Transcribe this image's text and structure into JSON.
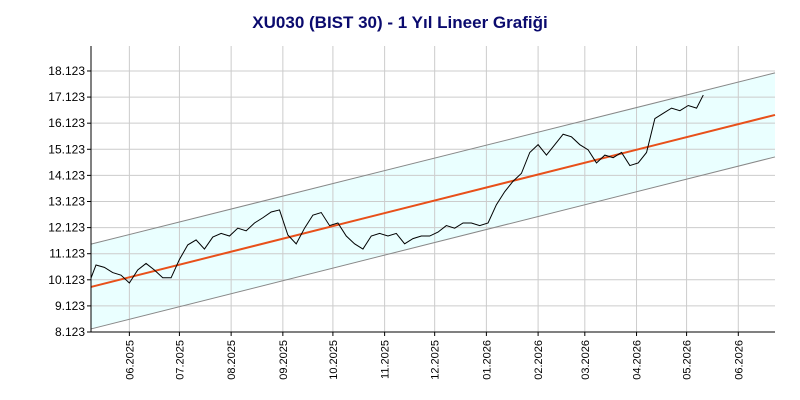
{
  "chart_data": {
    "type": "line",
    "title": "XU030 (BIST 30) - 1 Yıl Lineer Grafiği",
    "xlim": [
      0,
      410
    ],
    "xticks": [
      {
        "value": 23,
        "label": "06.2025"
      },
      {
        "value": 53,
        "label": "07.2025"
      },
      {
        "value": 84,
        "label": "08.2025"
      },
      {
        "value": 115,
        "label": "09.2025"
      },
      {
        "value": 145,
        "label": "10.2025"
      },
      {
        "value": 176,
        "label": "11.2025"
      },
      {
        "value": 206,
        "label": "12.2025"
      },
      {
        "value": 237,
        "label": "01.2026"
      },
      {
        "value": 268,
        "label": "02.2026"
      },
      {
        "value": 296,
        "label": "03.2026"
      },
      {
        "value": 327,
        "label": "04.2026"
      },
      {
        "value": 357,
        "label": "05.2026"
      },
      {
        "value": 388,
        "label": "06.2026"
      }
    ],
    "ylim": [
      8.123,
      19.08
    ],
    "yticks": [
      8.123,
      9.123,
      10.123,
      11.123,
      12.123,
      13.123,
      14.123,
      15.123,
      16.123,
      17.123,
      18.123
    ],
    "grid": true,
    "channel_fill": "#eaffff",
    "series": [
      {
        "color": "#888888",
        "x": [
          0,
          410
        ],
        "values": [
          11.49,
          18.05
        ]
      },
      {
        "color": "#888888",
        "x": [
          0,
          410
        ],
        "values": [
          8.24,
          14.83
        ]
      },
      {
        "color": "#e8501a",
        "x": [
          0,
          410
        ],
        "values": [
          9.85,
          16.44
        ]
      },
      {
        "color": "#000000",
        "x": [
          0,
          3,
          8,
          13,
          18,
          23,
          28,
          33,
          38,
          43,
          48,
          53,
          58,
          63,
          68,
          73,
          78,
          83,
          88,
          93,
          98,
          103,
          108,
          113,
          118,
          123,
          128,
          133,
          138,
          143,
          148,
          153,
          158,
          163,
          168,
          173,
          178,
          183,
          188,
          193,
          198,
          203,
          208,
          213,
          218,
          223,
          228,
          233,
          238,
          243,
          248,
          253,
          258,
          263,
          268,
          273,
          278,
          283,
          288,
          293,
          298,
          303,
          308,
          313,
          318,
          323,
          328,
          333,
          338,
          343,
          348,
          353,
          358,
          363,
          367
        ],
        "values": [
          10.19,
          10.69,
          10.6,
          10.4,
          10.3,
          10.0,
          10.5,
          10.75,
          10.5,
          10.2,
          10.2,
          10.9,
          11.46,
          11.65,
          11.3,
          11.76,
          11.9,
          11.8,
          12.1,
          12.0,
          12.3,
          12.5,
          12.72,
          12.8,
          11.84,
          11.5,
          12.1,
          12.6,
          12.7,
          12.2,
          12.3,
          11.8,
          11.5,
          11.3,
          11.8,
          11.9,
          11.8,
          11.9,
          11.5,
          11.7,
          11.8,
          11.8,
          11.95,
          12.2,
          12.1,
          12.3,
          12.3,
          12.2,
          12.3,
          13.0,
          13.5,
          13.9,
          14.2,
          15.0,
          15.3,
          14.9,
          15.3,
          15.7,
          15.6,
          15.3,
          15.1,
          14.6,
          14.9,
          14.8,
          15.0,
          14.5,
          14.6,
          15.0,
          16.3,
          16.5,
          16.7,
          16.6,
          16.8,
          16.7,
          17.2
        ]
      }
    ]
  }
}
